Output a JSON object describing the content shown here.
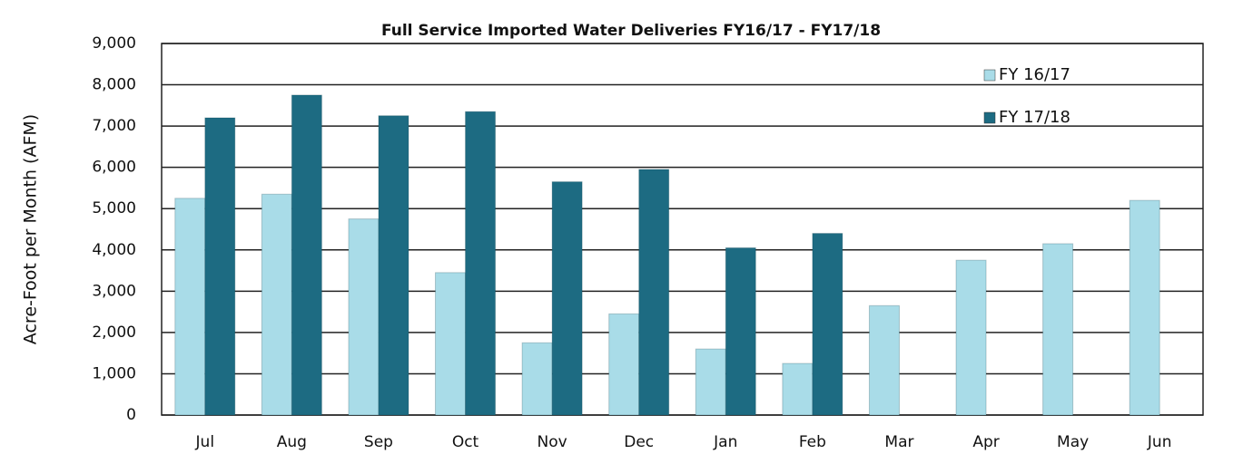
{
  "chart_data": {
    "type": "bar",
    "title": "Full Service Imported Water Deliveries FY16/17 - FY17/18",
    "y_label": "Acre-Foot per Month (AFM)",
    "categories": [
      "Jul",
      "Aug",
      "Sep",
      "Oct",
      "Nov",
      "Dec",
      "Jan",
      "Feb",
      "Mar",
      "Apr",
      "May",
      "Jun"
    ],
    "series": [
      {
        "name": "FY 16/17",
        "color": "#a9dce8",
        "values": [
          5250,
          5350,
          4750,
          3450,
          1750,
          2450,
          1600,
          1250,
          2650,
          3750,
          4150,
          5200
        ]
      },
      {
        "name": "FY 17/18",
        "color": "#1d6b82",
        "values": [
          7200,
          7750,
          7250,
          7350,
          5650,
          5950,
          4050,
          4400,
          null,
          null,
          null,
          null
        ]
      }
    ],
    "ylim": [
      0,
      9000
    ],
    "yticks": [
      0,
      {
        "value": 1000,
        "label": "1,000"
      },
      {
        "value": 2000,
        "label": "2,000"
      },
      {
        "value": 3000,
        "label": "3,000"
      },
      {
        "value": 4000,
        "label": "4,000"
      },
      {
        "value": 5000,
        "label": "5,000"
      },
      {
        "value": 6000,
        "label": "6,000"
      },
      {
        "value": 7000,
        "label": "7,000"
      },
      {
        "value": 8000,
        "label": "8,000"
      },
      {
        "value": 9000,
        "label": "9,000"
      }
    ],
    "grid": true,
    "legend": "upper right"
  }
}
